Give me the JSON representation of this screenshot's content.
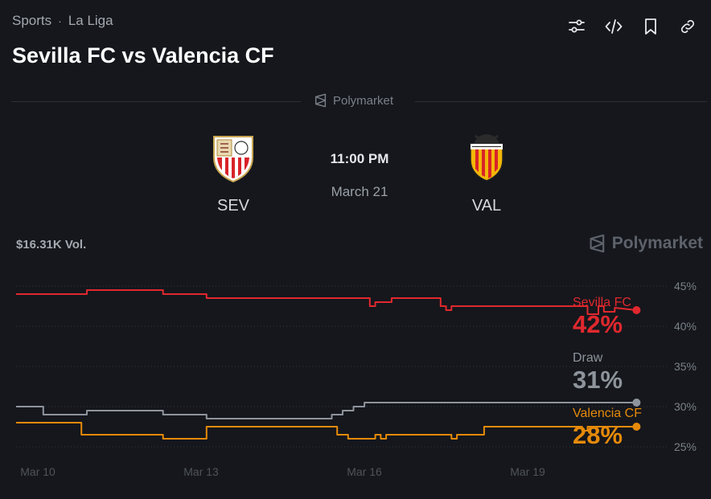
{
  "breadcrumb": {
    "section": "Sports",
    "separator": "·",
    "league": "La Liga"
  },
  "title": "Sevilla FC vs Valencia CF",
  "toolbar": {
    "icons": [
      "sliders-icon",
      "embed-code-icon",
      "bookmark-icon",
      "link-icon"
    ]
  },
  "divider_brand": "Polymarket",
  "match": {
    "home": {
      "abbr": "SEV",
      "color": "#e0202c"
    },
    "away": {
      "abbr": "VAL",
      "color": "#f2b707"
    },
    "time": "11:00 PM",
    "date": "March 21"
  },
  "volume": "$16.31K Vol.",
  "brand": "Polymarket",
  "legend": [
    {
      "name": "Sevilla FC",
      "value": "42%",
      "color": "#e0282e"
    },
    {
      "name": "Draw",
      "value": "31%",
      "color": "#8e949c"
    },
    {
      "name": "Valencia CF",
      "value": "28%",
      "color": "#e68a0a"
    }
  ],
  "chart_data": {
    "type": "line",
    "x_tick_labels": [
      "Mar 10",
      "Mar 13",
      "Mar 16",
      "Mar 19"
    ],
    "x_tick_days": [
      10,
      13,
      16,
      19
    ],
    "x_range": [
      9.6,
      21.6
    ],
    "y_tick_labels": [
      "45%",
      "40%",
      "35%",
      "30%",
      "25%"
    ],
    "y_ticks": [
      45,
      40,
      35,
      30,
      25
    ],
    "ylim": [
      25,
      45
    ],
    "grid": true,
    "series": [
      {
        "name": "Sevilla FC",
        "color": "#e0282e",
        "x": [
          9.6,
          10.9,
          10.9,
          12.3,
          12.3,
          13.1,
          13.1,
          16.1,
          16.1,
          16.2,
          16.2,
          16.5,
          16.5,
          17.4,
          17.4,
          17.5,
          17.5,
          17.6,
          17.6,
          20.1,
          20.1,
          20.3,
          20.3,
          20.4,
          20.4,
          20.6,
          20.6,
          21.0
        ],
        "y": [
          44,
          44,
          44.5,
          44.5,
          44,
          44,
          43.5,
          43.5,
          42.5,
          42.5,
          43,
          43,
          43.5,
          43.5,
          42.5,
          42.5,
          42,
          42,
          42.5,
          42.5,
          41.5,
          41.5,
          42.5,
          42.5,
          41.8,
          41.8,
          42.3,
          42
        ]
      },
      {
        "name": "Draw",
        "color": "#8e949c",
        "x": [
          9.6,
          10.1,
          10.1,
          10.9,
          10.9,
          12.3,
          12.3,
          13.1,
          13.1,
          15.4,
          15.4,
          15.6,
          15.6,
          15.8,
          15.8,
          16.0,
          16.0,
          21.0
        ],
        "y": [
          30,
          30,
          29,
          29,
          29.5,
          29.5,
          29,
          29,
          28.5,
          28.5,
          29,
          29,
          29.5,
          29.5,
          30,
          30,
          30.5,
          30.5
        ]
      },
      {
        "name": "Valencia CF",
        "color": "#e68a0a",
        "x": [
          9.6,
          10.8,
          10.8,
          12.3,
          12.3,
          13.1,
          13.1,
          15.5,
          15.5,
          15.7,
          15.7,
          16.2,
          16.2,
          16.3,
          16.3,
          16.4,
          16.4,
          16.6,
          16.6,
          17.6,
          17.6,
          17.7,
          17.7,
          18.2,
          18.2,
          20.0,
          20.0,
          20.1,
          20.1,
          20.3,
          20.3,
          21.0
        ],
        "y": [
          28,
          28,
          26.5,
          26.5,
          26,
          26,
          27.5,
          27.5,
          26.5,
          26.5,
          26,
          26,
          26.5,
          26.5,
          26,
          26,
          26.5,
          26.5,
          26.5,
          26.5,
          26,
          26,
          26.5,
          26.5,
          27.5,
          27.5,
          27,
          27,
          27.5,
          27.5,
          27.5,
          27.5
        ]
      }
    ]
  }
}
